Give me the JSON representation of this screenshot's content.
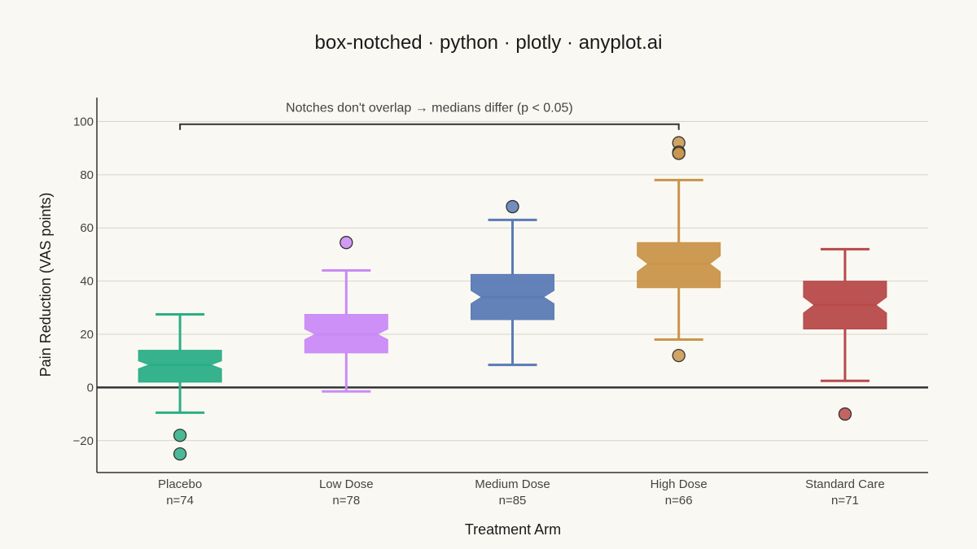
{
  "chart_data": {
    "type": "box",
    "title": "box-notched · python · plotly · anyplot.ai",
    "xlabel": "Treatment Arm",
    "ylabel": "Pain Reduction (VAS points)",
    "ylim": [
      -32,
      109
    ],
    "yticks": [
      -20,
      0,
      20,
      40,
      60,
      80,
      100
    ],
    "ytick_labels": [
      "−20",
      "0",
      "20",
      "40",
      "60",
      "80",
      "100"
    ],
    "grid": true,
    "annotation": {
      "text": "Notches don't overlap → medians differ (p < 0.05)",
      "from_category": "Placebo",
      "to_category": "High Dose",
      "y": 99
    },
    "series": [
      {
        "name": "Placebo",
        "n_label": "n=74",
        "color": "#2BAE87",
        "whisker_low": -9.5,
        "q1": 2,
        "median": 8.5,
        "q3": 14,
        "whisker_high": 27.5,
        "notch_low": 7,
        "notch_high": 10,
        "outliers": [
          -18,
          -25
        ]
      },
      {
        "name": "Low Dose",
        "n_label": "n=78",
        "color": "#C98AF5",
        "whisker_low": -1.5,
        "q1": 13,
        "median": 20,
        "q3": 27.5,
        "whisker_high": 44,
        "notch_low": 18,
        "notch_high": 22,
        "outliers": [
          54.5
        ]
      },
      {
        "name": "Medium Dose",
        "n_label": "n=85",
        "color": "#5B7BB5",
        "whisker_low": 8.5,
        "q1": 25.5,
        "median": 34,
        "q3": 42.5,
        "whisker_high": 63,
        "notch_low": 31.5,
        "notch_high": 36.5,
        "outliers": [
          68
        ]
      },
      {
        "name": "High Dose",
        "n_label": "n=66",
        "color": "#C9954A",
        "whisker_low": 18,
        "q1": 37.5,
        "median": 46.5,
        "q3": 54.5,
        "whisker_high": 78,
        "notch_low": 43.5,
        "notch_high": 49.5,
        "outliers": [
          92,
          88.5,
          88,
          12
        ]
      },
      {
        "name": "Standard Care",
        "n_label": "n=71",
        "color": "#B84A4A",
        "whisker_low": 2.5,
        "q1": 22,
        "median": 31,
        "q3": 40,
        "whisker_high": 52,
        "notch_low": 28,
        "notch_high": 34,
        "outliers": [
          -10
        ]
      }
    ]
  }
}
